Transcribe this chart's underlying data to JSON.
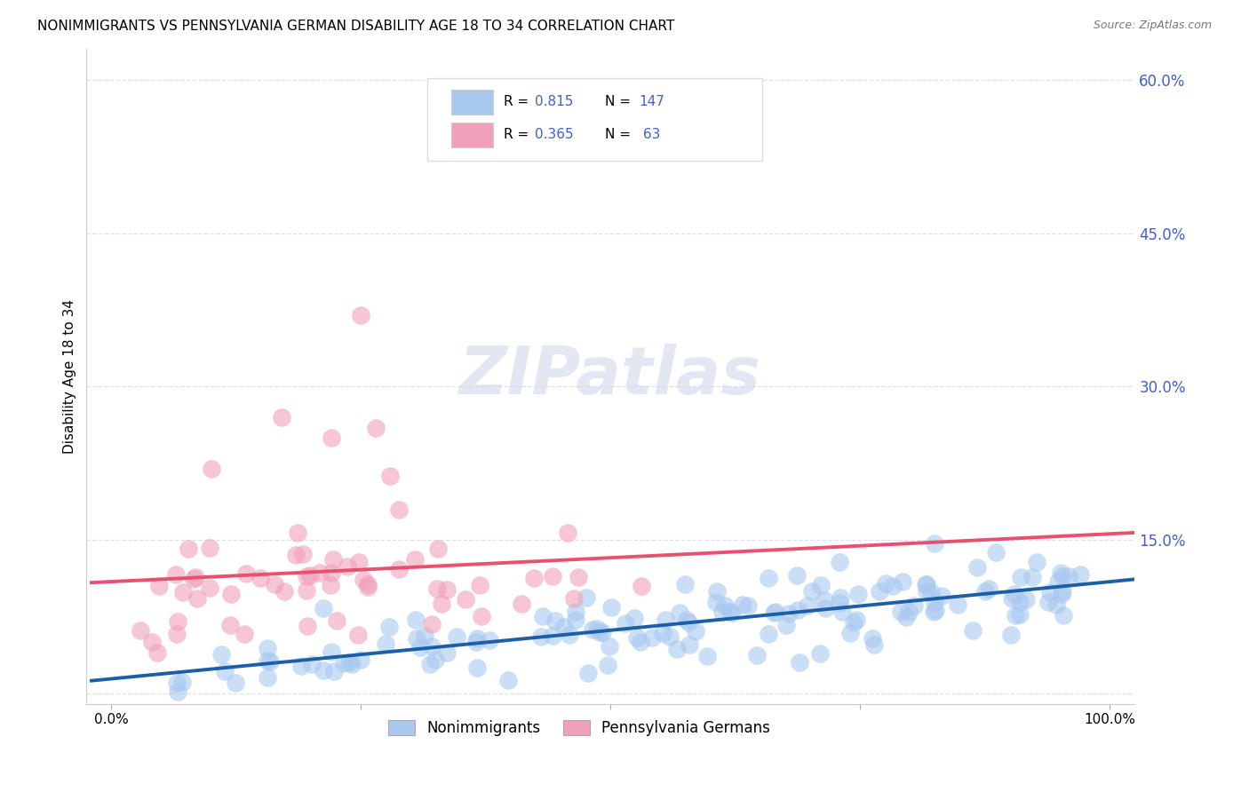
{
  "title": "NONIMMIGRANTS VS PENNSYLVANIA GERMAN DISABILITY AGE 18 TO 34 CORRELATION CHART",
  "source": "Source: ZipAtlas.com",
  "xlabel_nonimm": "Nonimmigrants",
  "xlabel_pagerman": "Pennsylvania Germans",
  "ylabel": "Disability Age 18 to 34",
  "blue_R": 0.815,
  "blue_N": 147,
  "pink_R": 0.365,
  "pink_N": 63,
  "blue_color": "#a8c8f0",
  "pink_color": "#f0a0b8",
  "blue_line_color": "#1a5fa8",
  "pink_line_color": "#e85070",
  "dashed_line_color": "#c8c8d8",
  "watermark_text": "ZIPatlas",
  "title_fontsize": 11,
  "legend_text_color": "#4060c8",
  "background_color": "#ffffff",
  "grid_color": "#dde0ee",
  "xmin": 0.0,
  "xmax": 1.0,
  "ymin": 0.0,
  "ymax": 0.63,
  "ytick_vals": [
    0.0,
    0.15,
    0.3,
    0.45,
    0.6
  ],
  "ytick_labels": [
    "",
    "15.0%",
    "30.0%",
    "45.0%",
    "60.0%"
  ],
  "xtick_vals": [
    0.0,
    0.25,
    0.5,
    0.75,
    1.0
  ],
  "xtick_labels": [
    "0.0%",
    "",
    "",
    "",
    "100.0%"
  ]
}
